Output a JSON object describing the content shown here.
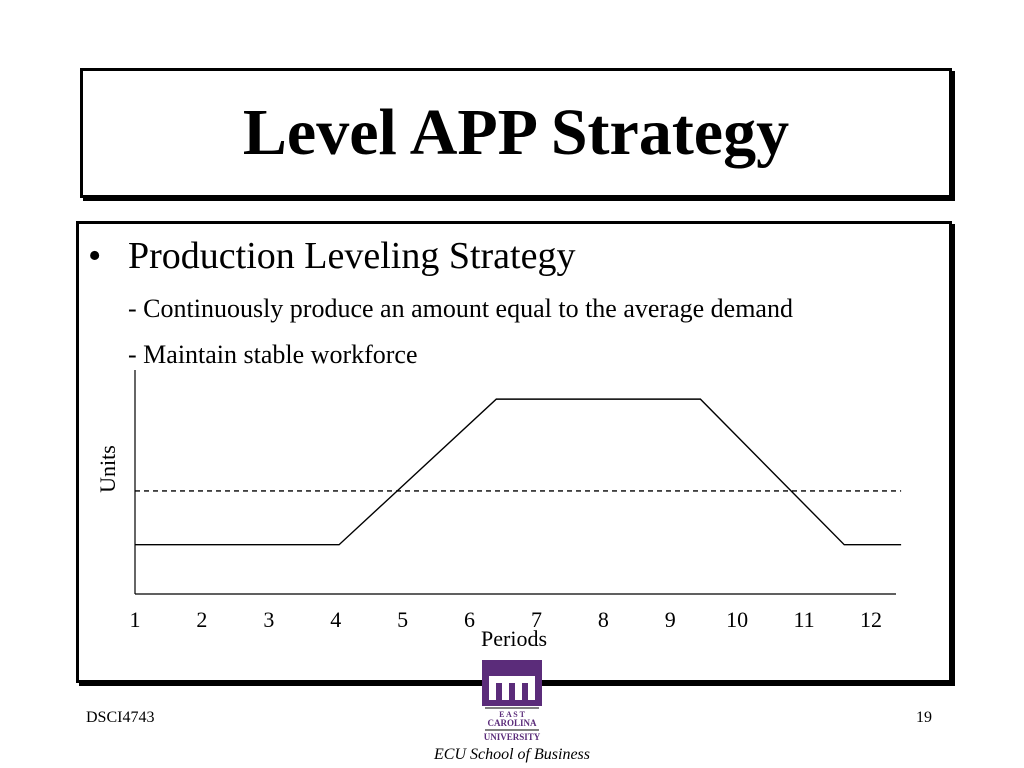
{
  "slide": {
    "title": "Level APP Strategy",
    "bullet_marker": "•",
    "bullet": "Production Leveling Strategy",
    "sub1": "- Continuously produce an amount equal to the average demand",
    "sub2": "- Maintain stable workforce"
  },
  "chart_data": {
    "type": "line",
    "ylabel": "Units",
    "xlabel": "Periods",
    "x_ticks": [
      "1",
      "2",
      "3",
      "4",
      "5",
      "6",
      "7",
      "8",
      "9",
      "10",
      "11",
      "12"
    ],
    "x_range": [
      1,
      12
    ],
    "y_range": [
      0,
      10
    ],
    "series": [
      {
        "style": "solid",
        "points": [
          [
            1,
            2.2
          ],
          [
            4.05,
            2.2
          ],
          [
            6.4,
            8.7
          ],
          [
            9.45,
            8.7
          ],
          [
            11.6,
            2.2
          ],
          [
            12.45,
            2.2
          ]
        ]
      },
      {
        "style": "dashed",
        "points": [
          [
            1,
            4.6
          ],
          [
            12.45,
            4.6
          ]
        ]
      }
    ]
  },
  "footer": {
    "left": "DSCI4743",
    "right": "19",
    "logo_lines": [
      "E A S T",
      "CAROLINA",
      "UNIVERSITY"
    ],
    "logo_caption": "ECU School of Business"
  },
  "colors": {
    "logo_purple": "#5b2c7a"
  }
}
